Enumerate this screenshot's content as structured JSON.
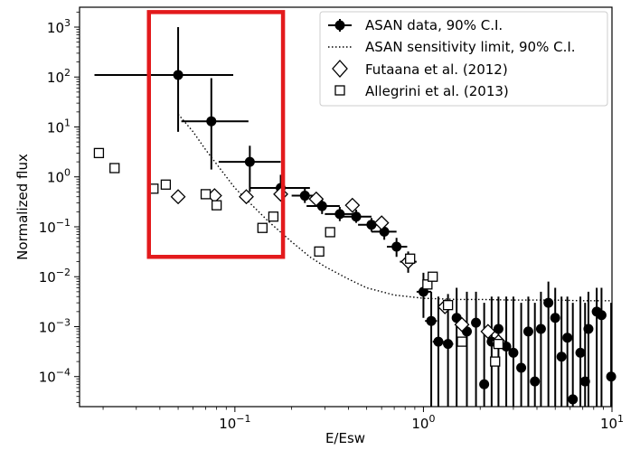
{
  "chart_data": {
    "type": "scatter",
    "xscale": "log",
    "yscale": "log",
    "xlabel": "E/Esw",
    "ylabel": "Normalized flux",
    "xlim": [
      0.015,
      10
    ],
    "ylim": [
      2.5e-05,
      2500
    ],
    "x_ticks": [
      {
        "value": 0.1,
        "base": "10",
        "exp": "−1"
      },
      {
        "value": 1,
        "base": "10",
        "exp": "0"
      },
      {
        "value": 10,
        "base": "10",
        "exp": "1"
      }
    ],
    "y_ticks": [
      {
        "value": 0.0001,
        "base": "10",
        "exp": "−4"
      },
      {
        "value": 0.001,
        "base": "10",
        "exp": "−3"
      },
      {
        "value": 0.01,
        "base": "10",
        "exp": "−2"
      },
      {
        "value": 0.1,
        "base": "10",
        "exp": "−1"
      },
      {
        "value": 1,
        "base": "10",
        "exp": "0"
      },
      {
        "value": 10,
        "base": "10",
        "exp": "1"
      },
      {
        "value": 100,
        "base": "10",
        "exp": "2"
      },
      {
        "value": 1000,
        "base": "10",
        "exp": "3"
      }
    ],
    "legend": {
      "position": "top-right",
      "entries": [
        {
          "label": "ASAN data, 90% C.I.",
          "marker": "filled-circle-errorbar"
        },
        {
          "label": "ASAN sensitivity limit, 90% C.I.",
          "marker": "dotted-line"
        },
        {
          "label": "Futaana et al. (2012)",
          "marker": "open-diamond"
        },
        {
          "label": "Allegrini et al. (2013)",
          "marker": "open-square"
        }
      ]
    },
    "series": [
      {
        "name": "ASAN data, 90% C.I.",
        "marker": "filled-circle",
        "points": [
          {
            "x": 0.05,
            "y": 110,
            "xerr": [
              0.018,
              0.098
            ],
            "yerr": [
              8,
              1000
            ]
          },
          {
            "x": 0.075,
            "y": 13,
            "xerr": [
              0.052,
              0.118
            ],
            "yerr": [
              1.4,
              95
            ]
          },
          {
            "x": 0.12,
            "y": 2.0,
            "xerr": [
              0.082,
              0.175
            ],
            "yerr": [
              0.5,
              4.2
            ]
          },
          {
            "x": 0.175,
            "y": 0.6,
            "xerr": [
              0.12,
              0.25
            ],
            "yerr": [
              0.35,
              1.1
            ]
          },
          {
            "x": 0.235,
            "y": 0.42,
            "xerr": [
              0.2,
              0.28
            ],
            "yerr": [
              0.3,
              0.6
            ]
          },
          {
            "x": 0.29,
            "y": 0.26,
            "xerr": [
              0.24,
              0.36
            ],
            "yerr": [
              0.18,
              0.36
            ]
          },
          {
            "x": 0.36,
            "y": 0.18,
            "xerr": [
              0.3,
              0.44
            ],
            "yerr": [
              0.13,
              0.25
            ]
          },
          {
            "x": 0.44,
            "y": 0.16,
            "xerr": [
              0.37,
              0.53
            ],
            "yerr": [
              0.12,
              0.22
            ]
          },
          {
            "x": 0.53,
            "y": 0.11,
            "xerr": [
              0.45,
              0.62
            ],
            "yerr": [
              0.08,
              0.15
            ]
          },
          {
            "x": 0.62,
            "y": 0.08,
            "xerr": [
              0.53,
              0.72
            ],
            "yerr": [
              0.055,
              0.12
            ]
          },
          {
            "x": 0.72,
            "y": 0.04,
            "xerr": [
              0.64,
              0.82
            ],
            "yerr": [
              0.025,
              0.06
            ]
          },
          {
            "x": 0.83,
            "y": 0.02,
            "xerr": [
              0.75,
              0.92
            ],
            "yerr": [
              0.012,
              0.032
            ]
          },
          {
            "x": 1.0,
            "y": 0.005,
            "xerr": [
              0.92,
              1.1
            ],
            "yerr": [
              0.0015,
              0.012
            ]
          },
          {
            "x": 1.1,
            "y": 0.0013,
            "xerr": [
              1.02,
              1.18
            ],
            "yerr": [
              2.5e-05,
              0.005
            ]
          },
          {
            "x": 1.2,
            "y": 0.0005,
            "xerr": [
              1.12,
              1.28
            ],
            "yerr": [
              2.5e-05,
              0.004
            ]
          },
          {
            "x": 1.35,
            "y": 0.00045,
            "xerr": [
              1.27,
              1.44
            ],
            "yerr": [
              2.5e-05,
              0.0045
            ]
          },
          {
            "x": 1.5,
            "y": 0.0015,
            "xerr": [
              1.42,
              1.58
            ],
            "yerr": [
              2.5e-05,
              0.006
            ]
          },
          {
            "x": 1.7,
            "y": 0.0008,
            "xerr": [
              1.6,
              1.8
            ],
            "yerr": [
              2.5e-05,
              0.005
            ]
          },
          {
            "x": 1.9,
            "y": 0.0012,
            "xerr": [
              1.8,
              2.0
            ],
            "yerr": [
              2.5e-05,
              0.005
            ]
          },
          {
            "x": 2.1,
            "y": 7e-05,
            "xerr": [
              2.0,
              2.2
            ],
            "yerr": [
              2.5e-05,
              0.003
            ]
          },
          {
            "x": 2.3,
            "y": 0.0005,
            "xerr": [
              2.2,
              2.4
            ],
            "yerr": [
              2.5e-05,
              0.004
            ]
          },
          {
            "x": 2.5,
            "y": 0.0009,
            "xerr": [
              2.4,
              2.6
            ],
            "yerr": [
              2.5e-05,
              0.004
            ]
          },
          {
            "x": 2.75,
            "y": 0.0004,
            "xerr": [
              2.65,
              2.85
            ],
            "yerr": [
              2.5e-05,
              0.004
            ]
          },
          {
            "x": 3.0,
            "y": 0.0003,
            "xerr": [
              2.9,
              3.1
            ],
            "yerr": [
              2.5e-05,
              0.004
            ]
          },
          {
            "x": 3.3,
            "y": 0.00015,
            "xerr": [
              3.2,
              3.4
            ],
            "yerr": [
              2.5e-05,
              0.003
            ]
          },
          {
            "x": 3.6,
            "y": 0.0008,
            "xerr": [
              3.5,
              3.7
            ],
            "yerr": [
              2.5e-05,
              0.004
            ]
          },
          {
            "x": 3.9,
            "y": 8e-05,
            "xerr": [
              3.8,
              4.0
            ],
            "yerr": [
              2.5e-05,
              0.003
            ]
          },
          {
            "x": 4.2,
            "y": 0.0009,
            "xerr": [
              4.1,
              4.3
            ],
            "yerr": [
              2.5e-05,
              0.005
            ]
          },
          {
            "x": 4.6,
            "y": 0.003,
            "xerr": [
              4.5,
              4.7
            ],
            "yerr": [
              2.5e-05,
              0.008
            ]
          },
          {
            "x": 5.0,
            "y": 0.0015,
            "xerr": [
              4.9,
              5.1
            ],
            "yerr": [
              2.5e-05,
              0.006
            ]
          },
          {
            "x": 5.4,
            "y": 0.00025,
            "xerr": [
              5.3,
              5.5
            ],
            "yerr": [
              2.5e-05,
              0.004
            ]
          },
          {
            "x": 5.8,
            "y": 0.0006,
            "xerr": [
              5.7,
              5.9
            ],
            "yerr": [
              2.5e-05,
              0.004
            ]
          },
          {
            "x": 6.2,
            "y": 3.5e-05,
            "xerr": [
              6.1,
              6.3
            ],
            "yerr": [
              2.5e-05,
              0.003
            ]
          },
          {
            "x": 6.8,
            "y": 0.0003,
            "xerr": [
              6.7,
              6.9
            ],
            "yerr": [
              2.5e-05,
              0.004
            ]
          },
          {
            "x": 7.2,
            "y": 8e-05,
            "xerr": [
              7.1,
              7.3
            ],
            "yerr": [
              2.5e-05,
              0.003
            ]
          },
          {
            "x": 7.5,
            "y": 0.0009,
            "xerr": [
              7.4,
              7.6
            ],
            "yerr": [
              2.5e-05,
              0.005
            ]
          },
          {
            "x": 8.3,
            "y": 0.002,
            "xerr": [
              8.2,
              8.4
            ],
            "yerr": [
              2.5e-05,
              0.006
            ]
          },
          {
            "x": 8.8,
            "y": 0.0017,
            "xerr": [
              8.7,
              8.9
            ],
            "yerr": [
              2.5e-05,
              0.006
            ]
          },
          {
            "x": 9.9,
            "y": 0.0001,
            "xerr": [
              9.8,
              10
            ],
            "yerr": [
              2.5e-05,
              0.003
            ]
          }
        ]
      },
      {
        "name": "ASAN sensitivity limit, 90% C.I.",
        "style": "dotted",
        "x": [
          0.05,
          0.06,
          0.07,
          0.08,
          0.1,
          0.12,
          0.15,
          0.2,
          0.25,
          0.3,
          0.4,
          0.5,
          0.7,
          1.0,
          1.5,
          2,
          3,
          5,
          7,
          10
        ],
        "y": [
          18,
          8,
          3.5,
          1.8,
          0.6,
          0.3,
          0.13,
          0.05,
          0.025,
          0.016,
          0.009,
          0.006,
          0.0043,
          0.0037,
          0.0035,
          0.0035,
          0.0034,
          0.0034,
          0.0033,
          0.0033
        ]
      },
      {
        "name": "Futaana et al. (2012)",
        "marker": "open-diamond",
        "x": [
          0.05,
          0.078,
          0.115,
          0.175,
          0.27,
          0.42,
          0.6,
          0.83,
          1.3,
          1.6,
          2.2,
          2.5
        ],
        "y": [
          0.4,
          0.42,
          0.4,
          0.45,
          0.36,
          0.27,
          0.12,
          0.02,
          0.0025,
          0.0011,
          0.0008,
          0.0005
        ]
      },
      {
        "name": "Allegrini et al. (2013)",
        "marker": "open-square",
        "x": [
          0.019,
          0.023,
          0.037,
          0.043,
          0.07,
          0.08,
          0.14,
          0.16,
          0.28,
          0.32,
          0.85,
          1.05,
          1.12,
          1.35,
          1.6,
          2.4,
          2.5
        ],
        "y": [
          3.0,
          1.5,
          0.58,
          0.7,
          0.45,
          0.27,
          0.095,
          0.16,
          0.032,
          0.078,
          0.023,
          0.007,
          0.01,
          0.0027,
          0.0005,
          0.0002,
          0.00045
        ]
      }
    ],
    "highlight_box": {
      "x_range": [
        0.035,
        0.18
      ],
      "y_range": [
        0.025,
        2000
      ],
      "color": "#e31a1c"
    }
  }
}
